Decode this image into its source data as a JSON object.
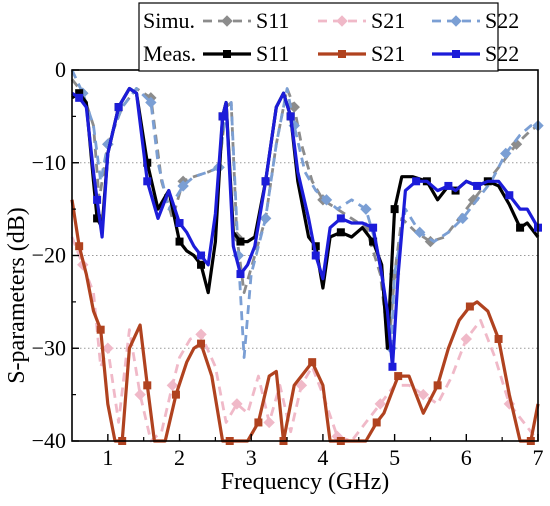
{
  "chart_data": {
    "type": "line",
    "xlabel": "Frequency (GHz)",
    "ylabel": "S-parameters (dB)",
    "xlim": [
      0.5,
      7
    ],
    "ylim": [
      -40,
      0
    ],
    "xticks": [
      1,
      2,
      3,
      4,
      5,
      6,
      7
    ],
    "yticks": [
      0,
      -10,
      -20,
      -30,
      -40
    ],
    "grid": "horizontal dotted",
    "legend": {
      "placement": "top",
      "rows": [
        {
          "label": "Simu.",
          "entries": [
            "S11",
            "S21",
            "S22"
          ]
        },
        {
          "label": "Meas.",
          "entries": [
            "S11",
            "S21",
            "S22"
          ]
        }
      ]
    },
    "series": [
      {
        "name": "S11",
        "group": "Simu.",
        "color": "#8c8c8c",
        "dash": true,
        "marker": "diamond",
        "x": [
          0.5,
          0.65,
          0.8,
          0.88,
          1.0,
          1.2,
          1.4,
          1.6,
          1.75,
          1.9,
          2.05,
          2.2,
          2.4,
          2.55,
          2.65,
          2.72,
          2.8,
          2.9,
          3.05,
          3.2,
          3.35,
          3.5,
          3.6,
          3.7,
          3.85,
          4.0,
          4.2,
          4.4,
          4.6,
          4.8,
          4.92,
          5.0,
          5.1,
          5.3,
          5.5,
          5.7,
          5.9,
          6.1,
          6.3,
          6.5,
          6.7,
          6.9,
          7.0
        ],
        "values": [
          -1,
          -2.5,
          -6,
          -14,
          -8,
          -4,
          -2,
          -3,
          -12,
          -16,
          -12,
          -11.5,
          -11,
          -10.5,
          -4,
          -3.5,
          -18,
          -24,
          -20,
          -16,
          -8,
          -2,
          -4,
          -8,
          -12,
          -14,
          -15,
          -16,
          -17,
          -22,
          -30,
          -22,
          -16,
          -17.5,
          -18.5,
          -18,
          -16,
          -14,
          -12,
          -10,
          -8,
          -6.5,
          -6
        ]
      },
      {
        "name": "S21",
        "group": "Simu.",
        "color": "#f0b9c8",
        "dash": true,
        "marker": "diamond",
        "x": [
          0.5,
          0.65,
          0.8,
          0.9,
          1.0,
          1.15,
          1.3,
          1.45,
          1.6,
          1.75,
          1.9,
          2.0,
          2.15,
          2.3,
          2.5,
          2.65,
          2.8,
          2.95,
          3.1,
          3.25,
          3.4,
          3.55,
          3.7,
          3.85,
          4.0,
          4.2,
          4.4,
          4.6,
          4.8,
          5.0,
          5.2,
          5.4,
          5.6,
          5.8,
          6.0,
          6.2,
          6.4,
          6.6,
          6.8,
          7.0
        ],
        "values": [
          -18,
          -21,
          -24,
          -32,
          -30,
          -38,
          -28,
          -35,
          -40,
          -39,
          -34,
          -31,
          -29,
          -28.5,
          -32,
          -38,
          -36,
          -37,
          -33,
          -38,
          -34,
          -39,
          -34,
          -32,
          -35,
          -39.5,
          -40,
          -38,
          -36,
          -34,
          -34,
          -35,
          -36,
          -33,
          -29,
          -27,
          -31,
          -36,
          -38,
          -40
        ]
      },
      {
        "name": "S22",
        "group": "Simu.",
        "color": "#7b9fd4",
        "dash": true,
        "marker": "diamond",
        "x": [
          0.5,
          0.65,
          0.8,
          0.9,
          1.0,
          1.2,
          1.4,
          1.6,
          1.7,
          1.85,
          2.05,
          2.2,
          2.4,
          2.55,
          2.65,
          2.72,
          2.82,
          2.9,
          3.0,
          3.2,
          3.35,
          3.5,
          3.6,
          3.75,
          3.9,
          4.05,
          4.2,
          4.4,
          4.6,
          4.75,
          4.88,
          4.95,
          5.0,
          5.15,
          5.35,
          5.55,
          5.75,
          5.95,
          6.15,
          6.35,
          6.55,
          6.75,
          6.9,
          7.0
        ],
        "values": [
          0,
          -2.5,
          -6,
          -12,
          -8,
          -4,
          -2,
          -3.5,
          -10,
          -15,
          -12.5,
          -11.5,
          -11,
          -10.5,
          -4,
          -3.5,
          -20,
          -31,
          -22,
          -16,
          -8,
          -2,
          -6,
          -11,
          -13,
          -14,
          -15,
          -14,
          -15,
          -19,
          -25,
          -30,
          -22,
          -15,
          -17.5,
          -18.5,
          -17.5,
          -16,
          -14,
          -12,
          -9,
          -7,
          -6,
          -6
        ]
      },
      {
        "name": "S11",
        "group": "Meas.",
        "color": "#000000",
        "dash": false,
        "marker": "square",
        "x": [
          0.5,
          0.6,
          0.7,
          0.8,
          0.85,
          0.92,
          1.0,
          1.15,
          1.3,
          1.4,
          1.55,
          1.7,
          1.85,
          2.0,
          2.1,
          2.2,
          2.3,
          2.4,
          2.5,
          2.6,
          2.65,
          2.75,
          2.85,
          2.95,
          3.05,
          3.2,
          3.35,
          3.45,
          3.55,
          3.65,
          3.8,
          3.9,
          4.0,
          4.1,
          4.25,
          4.4,
          4.55,
          4.7,
          4.82,
          4.9,
          5.0,
          5.1,
          5.25,
          5.45,
          5.6,
          5.75,
          5.85,
          6.0,
          6.15,
          6.3,
          6.45,
          6.6,
          6.75,
          6.85,
          7.0
        ],
        "values": [
          -3,
          -2.5,
          -3.5,
          -12,
          -16,
          -17,
          -9,
          -4,
          -2,
          -2.5,
          -10,
          -15,
          -13,
          -18.5,
          -19.5,
          -20,
          -21,
          -24,
          -18.5,
          -5,
          -3.5,
          -17.5,
          -18.5,
          -18.5,
          -18,
          -12,
          -4,
          -2.5,
          -5,
          -12,
          -18,
          -19,
          -23.5,
          -18,
          -17.5,
          -18,
          -17,
          -18.5,
          -21,
          -30,
          -15,
          -11.5,
          -11.5,
          -12,
          -14,
          -12.5,
          -13,
          -12,
          -12.5,
          -12,
          -12.5,
          -14.5,
          -17,
          -16.5,
          -18
        ]
      },
      {
        "name": "S21",
        "group": "Meas.",
        "color": "#b0421f",
        "dash": false,
        "marker": "square",
        "x": [
          0.5,
          0.6,
          0.7,
          0.8,
          0.9,
          1.0,
          1.1,
          1.2,
          1.3,
          1.45,
          1.55,
          1.65,
          1.8,
          1.95,
          2.1,
          2.2,
          2.3,
          2.45,
          2.6,
          2.7,
          2.85,
          2.95,
          3.1,
          3.25,
          3.35,
          3.45,
          3.6,
          3.7,
          3.85,
          4.0,
          4.1,
          4.25,
          4.4,
          4.6,
          4.75,
          4.85,
          4.95,
          5.05,
          5.2,
          5.4,
          5.6,
          5.75,
          5.9,
          6.05,
          6.15,
          6.3,
          6.45,
          6.6,
          6.75,
          6.9,
          7.0
        ],
        "values": [
          -14,
          -19,
          -22,
          -26,
          -28,
          -36,
          -40,
          -40,
          -30,
          -27.5,
          -34,
          -40,
          -40,
          -35,
          -31.5,
          -30,
          -29.5,
          -33,
          -40,
          -40,
          -40,
          -40,
          -38,
          -33,
          -32.5,
          -40,
          -34,
          -33,
          -31.5,
          -34,
          -40,
          -40,
          -40,
          -40,
          -38,
          -37,
          -35,
          -33,
          -33,
          -37,
          -34,
          -30,
          -27,
          -25.5,
          -25,
          -26,
          -29,
          -35,
          -40,
          -40,
          -36
        ]
      },
      {
        "name": "S22",
        "group": "Meas.",
        "color": "#1c1cd9",
        "dash": false,
        "marker": "square",
        "x": [
          0.5,
          0.6,
          0.7,
          0.8,
          0.85,
          0.92,
          1.0,
          1.15,
          1.3,
          1.4,
          1.55,
          1.7,
          1.85,
          2.0,
          2.1,
          2.2,
          2.3,
          2.4,
          2.5,
          2.6,
          2.65,
          2.75,
          2.85,
          2.95,
          3.05,
          3.2,
          3.35,
          3.45,
          3.55,
          3.65,
          3.8,
          3.9,
          4.0,
          4.1,
          4.25,
          4.4,
          4.55,
          4.7,
          4.82,
          4.9,
          4.97,
          5.05,
          5.15,
          5.3,
          5.45,
          5.6,
          5.75,
          5.85,
          6.0,
          6.15,
          6.3,
          6.45,
          6.6,
          6.75,
          6.85,
          7.0
        ],
        "values": [
          -2.5,
          -3,
          -4,
          -11,
          -14,
          -18,
          -9,
          -4,
          -2,
          -2.5,
          -12,
          -16,
          -13,
          -16.5,
          -17.5,
          -19,
          -20,
          -21,
          -15.5,
          -5,
          -3.5,
          -19,
          -22,
          -21,
          -19,
          -12,
          -4,
          -2.5,
          -5,
          -11,
          -16,
          -20,
          -22.5,
          -17,
          -16,
          -16.5,
          -16.5,
          -17,
          -22,
          -26,
          -32,
          -22,
          -13,
          -12,
          -12,
          -13,
          -12.5,
          -13,
          -12,
          -12.5,
          -12,
          -12,
          -13.5,
          -15,
          -15,
          -17
        ]
      }
    ]
  }
}
